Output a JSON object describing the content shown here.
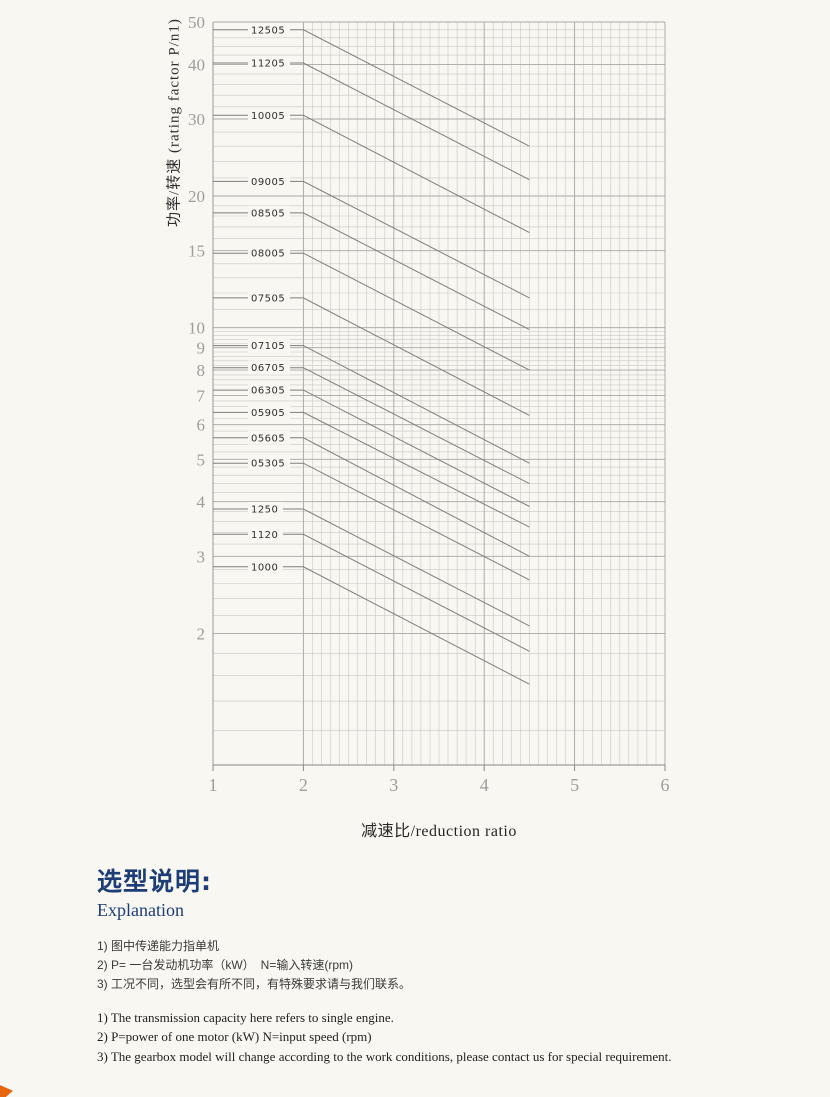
{
  "page": {
    "background": "#f8f7f2",
    "accent_navy": "#1d3d77",
    "corner_accent": "#e8650f"
  },
  "chart_data": {
    "type": "line",
    "title": "",
    "xlabel": "减速比/reduction ratio",
    "ylabel": "功率/转速 (rating factor P/n1)",
    "x_scale": "linear",
    "y_scale": "log",
    "xlim": [
      1,
      6
    ],
    "ylim": [
      1,
      50
    ],
    "x_ticks": [
      1,
      2,
      3,
      4,
      5,
      6
    ],
    "y_ticks": [
      2,
      3,
      4,
      5,
      6,
      7,
      8,
      9,
      10,
      15,
      20,
      30,
      40,
      50
    ],
    "grid": true,
    "legend_position": "none",
    "label_x": 1.42,
    "series": [
      {
        "name": "12505",
        "points": [
          [
            1,
            48
          ],
          [
            2,
            48
          ],
          [
            4.5,
            26
          ]
        ]
      },
      {
        "name": "11205",
        "points": [
          [
            1,
            40.3
          ],
          [
            2,
            40.3
          ],
          [
            4.5,
            21.8
          ]
        ]
      },
      {
        "name": "10005",
        "points": [
          [
            1,
            30.6
          ],
          [
            2,
            30.6
          ],
          [
            4.5,
            16.5
          ]
        ]
      },
      {
        "name": "09005",
        "points": [
          [
            1,
            21.6
          ],
          [
            2,
            21.6
          ],
          [
            4.5,
            11.7
          ]
        ]
      },
      {
        "name": "08505",
        "points": [
          [
            1,
            18.3
          ],
          [
            2,
            18.3
          ],
          [
            4.5,
            9.9
          ]
        ]
      },
      {
        "name": "08005",
        "points": [
          [
            1,
            14.8
          ],
          [
            2,
            14.8
          ],
          [
            4.5,
            8.0
          ]
        ]
      },
      {
        "name": "07505",
        "points": [
          [
            1,
            11.7
          ],
          [
            2,
            11.7
          ],
          [
            4.5,
            6.3
          ]
        ]
      },
      {
        "name": "07105",
        "points": [
          [
            1,
            9.1
          ],
          [
            2,
            9.1
          ],
          [
            4.5,
            4.9
          ]
        ]
      },
      {
        "name": "06705",
        "points": [
          [
            1,
            8.1
          ],
          [
            2,
            8.1
          ],
          [
            4.5,
            4.4
          ]
        ]
      },
      {
        "name": "06305",
        "points": [
          [
            1,
            7.2
          ],
          [
            2,
            7.2
          ],
          [
            4.5,
            3.9
          ]
        ]
      },
      {
        "name": "05905",
        "points": [
          [
            1,
            6.4
          ],
          [
            2,
            6.4
          ],
          [
            4.5,
            3.5
          ]
        ]
      },
      {
        "name": "05605",
        "points": [
          [
            1,
            5.6
          ],
          [
            2,
            5.6
          ],
          [
            4.5,
            3.0
          ]
        ]
      },
      {
        "name": "05305",
        "points": [
          [
            1,
            4.9
          ],
          [
            2,
            4.9
          ],
          [
            4.5,
            2.65
          ]
        ]
      },
      {
        "name": "1250",
        "points": [
          [
            1,
            3.85
          ],
          [
            2,
            3.85
          ],
          [
            4.5,
            2.08
          ]
        ]
      },
      {
        "name": "1120",
        "points": [
          [
            1,
            3.37
          ],
          [
            2,
            3.37
          ],
          [
            4.5,
            1.82
          ]
        ]
      },
      {
        "name": "1000",
        "points": [
          [
            1,
            2.84
          ],
          [
            2,
            2.84
          ],
          [
            4.5,
            1.53
          ]
        ]
      }
    ]
  },
  "explanation": {
    "title_zh": "选型说明:",
    "title_en": "Explanation",
    "notes_zh": [
      "1) 图中传递能力指单机",
      "2) P= 一台发动机功率（kW）　N=输入转速(rpm)",
      "3) 工况不同，选型会有所不同，有特殊要求请与我们联系。"
    ],
    "notes_en": [
      "1) The transmission capacity here refers to single engine.",
      "2) P=power of one motor (kW)  N=input speed (rpm)",
      "3) The gearbox model will change according to the work conditions, please contact us for special requirement."
    ]
  }
}
